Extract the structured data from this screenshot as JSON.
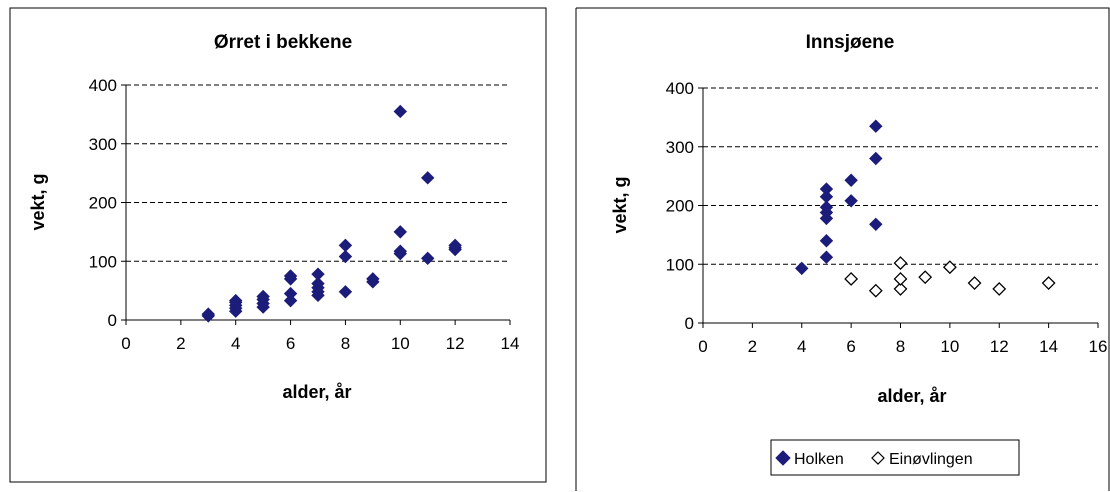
{
  "chart_data": [
    {
      "type": "scatter",
      "title": "Ørret i bekkene",
      "xlabel": "alder, år",
      "ylabel": "vekt, g",
      "xlim": [
        0,
        14
      ],
      "ylim": [
        0,
        400
      ],
      "xticks": [
        0,
        2,
        4,
        6,
        8,
        10,
        12,
        14
      ],
      "yticks": [
        0,
        100,
        200,
        300,
        400
      ],
      "grid": "horizontal-dashed",
      "legend": "none",
      "series": [
        {
          "marker": "diamond-filled",
          "color": "#1c1c7a",
          "points": [
            [
              3,
              7
            ],
            [
              3,
              10
            ],
            [
              4,
              15
            ],
            [
              4,
              20
            ],
            [
              4,
              25
            ],
            [
              4,
              30
            ],
            [
              4,
              33
            ],
            [
              5,
              22
            ],
            [
              5,
              28
            ],
            [
              5,
              35
            ],
            [
              5,
              40
            ],
            [
              6,
              33
            ],
            [
              6,
              45
            ],
            [
              6,
              70
            ],
            [
              6,
              75
            ],
            [
              7,
              42
            ],
            [
              7,
              48
            ],
            [
              7,
              55
            ],
            [
              7,
              62
            ],
            [
              7,
              78
            ],
            [
              8,
              48
            ],
            [
              8,
              108
            ],
            [
              8,
              127
            ],
            [
              9,
              65
            ],
            [
              9,
              70
            ],
            [
              10,
              113
            ],
            [
              10,
              117
            ],
            [
              10,
              150
            ],
            [
              10,
              355
            ],
            [
              11,
              105
            ],
            [
              11,
              242
            ],
            [
              12,
              120
            ],
            [
              12,
              123
            ],
            [
              12,
              127
            ]
          ]
        }
      ]
    },
    {
      "type": "scatter",
      "title": "Innsjøene",
      "xlabel": "alder, år",
      "ylabel": "vekt, g",
      "xlim": [
        0,
        16
      ],
      "ylim": [
        0,
        400
      ],
      "xticks": [
        0,
        2,
        4,
        6,
        8,
        10,
        12,
        14,
        16
      ],
      "yticks": [
        0,
        100,
        200,
        300,
        400
      ],
      "grid": "horizontal-dashed",
      "legend": "bottom",
      "series": [
        {
          "name": "Holken",
          "marker": "diamond-filled",
          "color": "#1c1c7a",
          "points": [
            [
              4,
              93
            ],
            [
              5,
              112
            ],
            [
              5,
              140
            ],
            [
              5,
              178
            ],
            [
              5,
              188
            ],
            [
              5,
              197
            ],
            [
              5,
              215
            ],
            [
              5,
              228
            ],
            [
              6,
              208
            ],
            [
              6,
              243
            ],
            [
              7,
              168
            ],
            [
              7,
              280
            ],
            [
              7,
              335
            ]
          ]
        },
        {
          "name": "Einøvlingen",
          "marker": "diamond-open",
          "color": "#000000",
          "points": [
            [
              6,
              75
            ],
            [
              7,
              55
            ],
            [
              8,
              58
            ],
            [
              8,
              75
            ],
            [
              8,
              102
            ],
            [
              9,
              78
            ],
            [
              10,
              95
            ],
            [
              11,
              68
            ],
            [
              12,
              58
            ],
            [
              14,
              68
            ]
          ]
        }
      ]
    }
  ]
}
